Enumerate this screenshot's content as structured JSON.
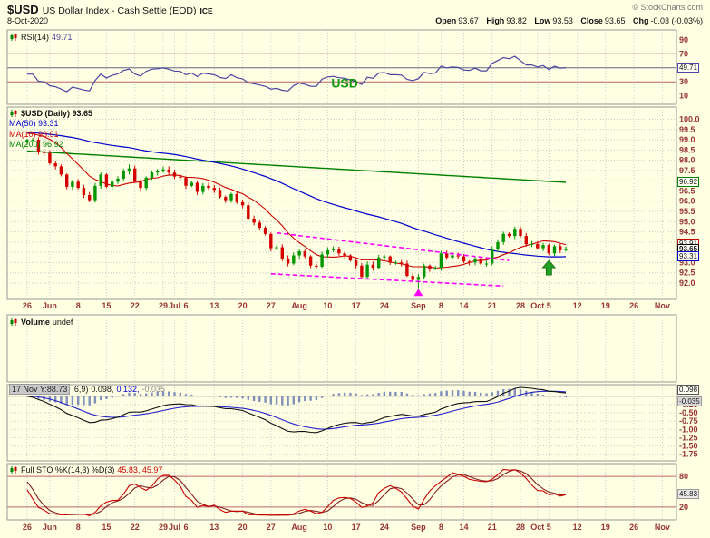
{
  "header": {
    "symbol": "$USD",
    "name": "US Dollar Index - Cash Settle (EOD)",
    "exchange": "ICE",
    "copyright": "© StockCharts.com",
    "date": "8-Oct-2020"
  },
  "quote": {
    "open_label": "Open",
    "open": "93.67",
    "high_label": "High",
    "high": "93.82",
    "low_label": "Low",
    "low": "93.53",
    "close_label": "Close",
    "close": "93.65",
    "chg_label": "Chg",
    "chg": "-0.03 (-0.03%)"
  },
  "rsi_label": {
    "name": "RSI(14)",
    "value": "49.71"
  },
  "main_legend": {
    "title": "$USD (Daily) 93.65",
    "ma50": "MA(50) 93.31",
    "ma10": "MA(10) 93.91",
    "ma200": "MA(200) 96.92"
  },
  "volume_label": {
    "name": "Volume",
    "value": "undef"
  },
  "ppo_label": {
    "overlay": "17 Nov Y:88.73",
    "suffix": ":6,9)",
    "v1": "0.098,",
    "v2": "0.132,",
    "v3": "-0.035"
  },
  "sto_label": {
    "name": "Full STO %K(14,3) %D(3)",
    "values": "45.83, 45.97"
  },
  "annotation_usd": "USD",
  "chart_data": {
    "type": "candlestick",
    "title": "$USD US Dollar Index - Cash Settle (EOD) ICE",
    "timeframe": "Daily",
    "last_quote": {
      "open": 93.67,
      "high": 93.82,
      "low": 93.53,
      "close": 93.65,
      "chg": -0.03,
      "chg_pct": -0.03
    },
    "total_slots": 118,
    "lead_slots": 3,
    "x_ticks": [
      {
        "i": 0,
        "label": "26"
      },
      {
        "i": 4,
        "label": "Jun"
      },
      {
        "i": 9,
        "label": "8"
      },
      {
        "i": 14,
        "label": "15"
      },
      {
        "i": 19,
        "label": "22"
      },
      {
        "i": 24,
        "label": "29"
      },
      {
        "i": 26,
        "label": "Jul"
      },
      {
        "i": 28,
        "label": "6"
      },
      {
        "i": 33,
        "label": "13"
      },
      {
        "i": 38,
        "label": "20"
      },
      {
        "i": 43,
        "label": "27"
      },
      {
        "i": 48,
        "label": "Aug"
      },
      {
        "i": 53,
        "label": "10"
      },
      {
        "i": 58,
        "label": "17"
      },
      {
        "i": 63,
        "label": "24"
      },
      {
        "i": 69,
        "label": "Sep"
      },
      {
        "i": 73,
        "label": "8"
      },
      {
        "i": 77,
        "label": "14"
      },
      {
        "i": 82,
        "label": "21"
      },
      {
        "i": 87,
        "label": "28"
      },
      {
        "i": 90,
        "label": "Oct"
      },
      {
        "i": 92,
        "label": "5"
      },
      {
        "i": 97,
        "label": "12"
      },
      {
        "i": 102,
        "label": "19"
      },
      {
        "i": 107,
        "label": "26"
      },
      {
        "i": 112,
        "label": "Nov"
      }
    ],
    "candles": {
      "first_open": 98.9,
      "closes": [
        99.0,
        99.0,
        98.4,
        98.35,
        97.85,
        97.7,
        97.3,
        96.7,
        96.95,
        96.65,
        96.3,
        96.05,
        96.75,
        97.3,
        96.7,
        96.95,
        97.1,
        97.45,
        97.6,
        96.95,
        96.65,
        97.15,
        97.4,
        97.45,
        97.55,
        97.4,
        97.2,
        97.15,
        96.75,
        96.9,
        96.45,
        96.75,
        96.65,
        96.55,
        96.2,
        96.05,
        96.35,
        95.95,
        95.8,
        95.15,
        94.95,
        94.7,
        94.4,
        93.7,
        93.75,
        93.2,
        92.95,
        93.35,
        93.55,
        93.3,
        92.85,
        92.8,
        93.4,
        93.6,
        93.65,
        93.45,
        93.35,
        93.1,
        92.85,
        92.3,
        92.9,
        92.75,
        93.25,
        93.3,
        93.0,
        93.0,
        92.95,
        92.35,
        92.15,
        92.3,
        92.85,
        92.7,
        92.75,
        93.45,
        93.25,
        93.35,
        93.3,
        93.05,
        93.0,
        93.2,
        92.95,
        92.95,
        93.65,
        94.0,
        94.4,
        94.3,
        94.65,
        94.3,
        93.9,
        93.9,
        93.7,
        93.85,
        93.45,
        93.8,
        93.6,
        93.65
      ],
      "overrides": [
        {
          "i": 18,
          "h": 97.8
        },
        {
          "i": 69,
          "l": 91.75
        },
        {
          "i": 86,
          "h": 94.75
        }
      ]
    },
    "pre_history": {
      "n": 50,
      "base": 99.35,
      "amp": 0.3,
      "freq": 0.7
    },
    "panels": {
      "main": {
        "vmax": 100.6,
        "vmin": 91.2,
        "y_ticks": [
          100.0,
          99.5,
          99.0,
          98.5,
          98.0,
          97.5,
          97.0,
          96.5,
          96.0,
          95.5,
          95.0,
          94.5,
          94.0,
          93.5,
          93.0,
          92.5,
          92.0
        ]
      },
      "rsi": {
        "vmax": 104,
        "vmin": -2,
        "y_ticks": [
          90,
          70,
          30,
          10
        ],
        "level_lines": [
          70,
          30,
          50
        ],
        "value": 49.71
      },
      "ppo": {
        "vmax": 0.35,
        "vmin": -1.95,
        "y_ticks": [
          -0.25,
          -0.5,
          -0.75,
          -1.0,
          -1.25,
          -1.5,
          -1.75
        ],
        "values": [
          0.098,
          0.132,
          -0.035
        ]
      },
      "sto": {
        "vmax": 105,
        "vmin": -5,
        "y_ticks": [
          80,
          20
        ],
        "level_lines": [
          80,
          20
        ],
        "values": [
          45.83,
          45.97
        ]
      }
    },
    "overlays": {
      "ma10_period": 10,
      "ma50_period": 50,
      "ma200": {
        "start": 98.45,
        "end": 96.92
      },
      "values": {
        "ma10": 93.91,
        "ma50": 93.31,
        "ma200": 96.92,
        "close": 93.65
      }
    },
    "chips": [
      {
        "panel": "rsi",
        "v": 49.71,
        "label": "49.71",
        "color": "#4b45a1"
      },
      {
        "panel": "main",
        "v": 96.92,
        "label": "96.92",
        "color": "#008000"
      },
      {
        "panel": "main",
        "v": 93.91,
        "label": "93.91",
        "color": "#cc0000"
      },
      {
        "panel": "main",
        "v": 93.65,
        "label": "93.65",
        "color": "#000000",
        "bold": true
      },
      {
        "panel": "main",
        "v": 93.31,
        "label": "93.31",
        "color": "#0000cc"
      },
      {
        "panel": "ppo",
        "v": 0.098,
        "label": "0.098",
        "color": "#555555",
        "dy": -4
      },
      {
        "panel": "ppo",
        "v": -0.035,
        "label": "-0.035",
        "color": "#999999",
        "bg": "#d8d8d8",
        "dy": 4
      },
      {
        "panel": "sto",
        "v": 45.83,
        "label": "45.83",
        "color": "#999999",
        "bg": "#e8e8e8"
      }
    ],
    "annotations": {
      "trendlines": [
        {
          "i1": 44,
          "v1": 94.45,
          "i2": 85,
          "v2": 93.1
        },
        {
          "i1": 43,
          "v1": 92.45,
          "i2": 84,
          "v2": 91.85
        }
      ],
      "arrow_up": {
        "i": 92,
        "v": 93.1
      },
      "arrow_magenta": {
        "i": 69,
        "v": 91.72
      },
      "usd_text": {
        "i": 56,
        "v": 22
      }
    },
    "colors": {
      "up": "#009600",
      "down": "#d40000",
      "ma10": "#cc0000",
      "ma50": "#0000cc",
      "ma200": "#008000",
      "rsi": "#4b45a1",
      "ppo": "#111111",
      "ppo_signal": "#2222cc",
      "hist": "#8090b8",
      "k": "#cc0000",
      "d": "#802020",
      "trend": "#ff00ff",
      "axis": "#993333",
      "grid": "#cccccc",
      "arrow": "#22a022"
    }
  }
}
